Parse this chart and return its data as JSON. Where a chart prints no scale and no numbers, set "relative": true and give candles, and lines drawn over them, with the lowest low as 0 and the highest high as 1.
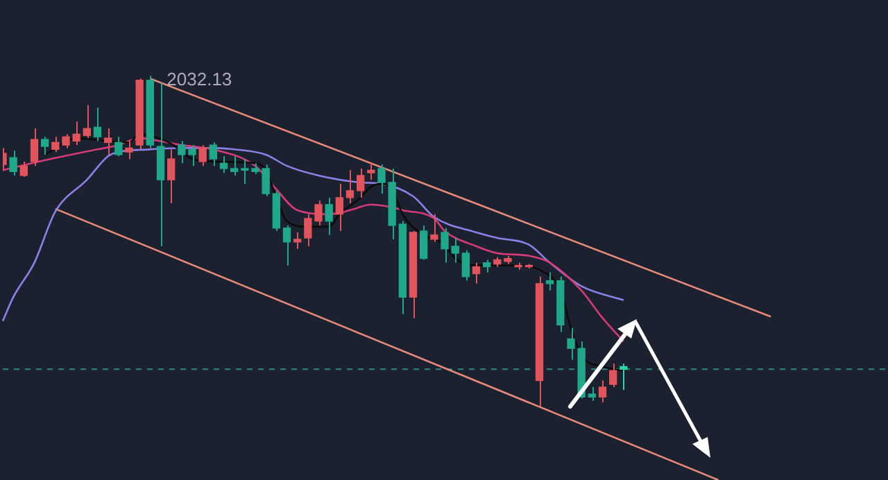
{
  "chart_data": {
    "type": "candlestick",
    "relative": true,
    "categories": [
      null,
      null,
      null,
      null,
      null,
      null,
      null,
      null,
      null,
      null,
      null,
      null,
      null,
      null,
      null,
      null,
      null,
      null,
      null,
      null,
      null,
      null,
      null,
      null,
      null,
      null,
      null,
      null,
      null,
      null,
      null,
      null,
      null,
      null,
      null,
      null,
      null,
      null,
      null,
      null,
      null,
      null,
      null,
      null,
      null,
      null,
      null,
      null,
      null,
      null,
      null,
      null,
      null,
      null,
      null,
      null,
      null,
      null,
      null,
      null,
      null,
      null,
      null,
      null,
      null,
      null,
      null,
      null,
      null,
      null,
      null,
      null,
      null,
      null,
      null,
      null,
      null,
      null,
      null,
      null,
      null,
      null,
      null,
      null,
      null
    ],
    "ohlc": [
      [
        0.732,
        0.782,
        0.715,
        0.766
      ],
      [
        0.753,
        0.774,
        0.699,
        0.711
      ],
      [
        0.699,
        0.741,
        0.695,
        0.728
      ],
      [
        0.741,
        0.841,
        0.728,
        0.808
      ],
      [
        0.808,
        0.816,
        0.762,
        0.787
      ],
      [
        0.778,
        0.816,
        0.77,
        0.799
      ],
      [
        0.791,
        0.824,
        0.782,
        0.816
      ],
      [
        0.803,
        0.862,
        0.791,
        0.824
      ],
      [
        0.82,
        0.912,
        0.812,
        0.841
      ],
      [
        0.845,
        0.904,
        0.803,
        0.816
      ],
      [
        0.799,
        0.841,
        0.762,
        0.812
      ],
      [
        0.799,
        0.816,
        0.757,
        0.762
      ],
      [
        0.77,
        0.803,
        0.749,
        0.782
      ],
      [
        0.791,
        0.992,
        0.778,
        0.987
      ],
      [
        0.987,
        1,
        0.782,
        0.791
      ],
      [
        0.787,
        0.979,
        0.485,
        0.686
      ],
      [
        0.686,
        0.778,
        0.615,
        0.749
      ],
      [
        0.791,
        0.803,
        0.736,
        0.762
      ],
      [
        0.778,
        0.791,
        0.728,
        0.762
      ],
      [
        0.741,
        0.791,
        0.728,
        0.782
      ],
      [
        0.791,
        0.799,
        0.728,
        0.749
      ],
      [
        0.736,
        0.757,
        0.707,
        0.72
      ],
      [
        0.72,
        0.757,
        0.699,
        0.711
      ],
      [
        0.72,
        0.749,
        0.674,
        0.715
      ],
      [
        0.72,
        0.736,
        0.703,
        0.711
      ],
      [
        0.72,
        0.732,
        0.636,
        0.644
      ],
      [
        0.644,
        0.653,
        0.531,
        0.54
      ],
      [
        0.54,
        0.548,
        0.427,
        0.498
      ],
      [
        0.498,
        0.527,
        0.477,
        0.506
      ],
      [
        0.51,
        0.582,
        0.485,
        0.569
      ],
      [
        0.561,
        0.623,
        0.548,
        0.611
      ],
      [
        0.611,
        0.632,
        0.519,
        0.561
      ],
      [
        0.582,
        0.674,
        0.531,
        0.632
      ],
      [
        0.632,
        0.715,
        0.615,
        0.653
      ],
      [
        0.653,
        0.72,
        0.632,
        0.699
      ],
      [
        0.707,
        0.736,
        0.686,
        0.715
      ],
      [
        0.72,
        0.732,
        0.644,
        0.678
      ],
      [
        0.678,
        0.72,
        0.506,
        0.548
      ],
      [
        0.552,
        0.561,
        0.28,
        0.331
      ],
      [
        0.331,
        0.531,
        0.268,
        0.527
      ],
      [
        0.531,
        0.548,
        0.444,
        0.448
      ],
      [
        0.506,
        0.582,
        0.498,
        0.519
      ],
      [
        0.527,
        0.54,
        0.435,
        0.477
      ],
      [
        0.485,
        0.51,
        0.435,
        0.464
      ],
      [
        0.464,
        0.473,
        0.381,
        0.393
      ],
      [
        0.402,
        0.435,
        0.372,
        0.423
      ],
      [
        0.435,
        0.444,
        0.406,
        0.423
      ],
      [
        0.431,
        0.452,
        0.423,
        0.444
      ],
      [
        0.439,
        0.456,
        0.431,
        0.448
      ],
      [
        0.423,
        0.435,
        0.414,
        0.427
      ],
      [
        0.423,
        0.431,
        0.418,
        0.427
      ],
      [
        0.079,
        0.393,
        0,
        0.372
      ],
      [
        0.381,
        0.406,
        0.351,
        0.372
      ],
      [
        0.381,
        0.393,
        0.226,
        0.247
      ],
      [
        0.205,
        0.238,
        0.142,
        0.176
      ],
      [
        0.176,
        0.197,
        0.025,
        0.029
      ],
      [
        0.038,
        0.059,
        0.017,
        0.029
      ],
      [
        0.029,
        0.079,
        0.013,
        0.059
      ],
      [
        0.067,
        0.13,
        0.059,
        0.109
      ],
      [
        0.121,
        0.13,
        0.05,
        0.113
      ],
      null,
      null,
      null,
      null,
      null,
      null,
      null,
      null,
      null,
      null,
      null,
      null,
      null,
      null,
      null,
      null,
      null,
      null,
      null,
      null,
      null,
      null,
      null,
      null,
      null
    ],
    "colors": [
      "#e2545c",
      "#1fa98a",
      "#e2545c",
      "#e2545c",
      "#1fa98a",
      "#e2545c",
      "#e2545c",
      "#e2545c",
      "#e2545c",
      "#1fa98a",
      "#e2545c",
      "#1fa98a",
      "#e2545c",
      "#e2545c",
      "#1fa98a",
      "#1fa98a",
      "#e2545c",
      "#1fa98a",
      "#1fa98a",
      "#e2545c",
      "#1fa98a",
      "#1fa98a",
      "#1fa98a",
      "#1fa98a",
      "#1fa98a",
      "#1fa98a",
      "#1fa98a",
      "#1fa98a",
      "#e2545c",
      "#e2545c",
      "#e2545c",
      "#1fa98a",
      "#e2545c",
      "#e2545c",
      "#e2545c",
      "#e2545c",
      "#1fa98a",
      "#1fa98a",
      "#1fa98a",
      "#e2545c",
      "#1fa98a",
      "#e2545c",
      "#1fa98a",
      "#1fa98a",
      "#1fa98a",
      "#e2545c",
      "#1fa98a",
      "#e2545c",
      "#e2545c",
      "#e2545c",
      "#e2545c",
      "#e2545c",
      "#1fa98a",
      "#1fa98a",
      "#1fa98a",
      "#1fa98a",
      "#1fa98a",
      "#e2545c",
      "#e2545c",
      "#2ad6a8",
      null,
      null,
      null,
      null,
      null,
      null,
      null,
      null,
      null,
      null,
      null,
      null,
      null,
      null,
      null,
      null,
      null,
      null,
      null,
      null,
      null,
      null,
      null,
      null,
      null
    ],
    "series": [
      {
        "type": "line",
        "color": "#0b0b0b",
        "values": [
          null,
          null,
          null,
          null,
          0.762,
          null,
          null,
          0.812,
          null,
          null,
          0.803,
          null,
          0.799,
          0.824,
          0.82,
          null,
          0.795,
          null,
          0.749,
          null,
          0.741,
          null,
          null,
          null,
          0.736,
          0.715,
          0.632,
          0.561,
          null,
          0.544,
          null,
          0.544,
          0.582,
          null,
          0.632,
          0.665,
          0.674,
          0.657,
          0.582,
          null,
          0.519,
          null,
          0.49,
          0.448,
          null,
          0.427,
          null,
          0.427,
          null,
          0.427,
          null,
          0.414,
          null,
          0.351,
          0.238,
          0.155,
          null,
          0.121,
          null,
          0.109,
          null,
          null,
          null,
          null,
          null,
          null,
          null,
          null,
          null,
          null,
          null,
          null,
          null,
          null,
          null,
          null,
          null,
          null,
          null,
          null,
          null,
          null,
          null,
          null,
          null
        ]
      },
      {
        "type": "line",
        "color": "#d63a78",
        "values": [
          0.715,
          null,
          null,
          null,
          0.745,
          null,
          null,
          null,
          null,
          0.778,
          null,
          0.791,
          null,
          0.812,
          null,
          0.803,
          null,
          0.791,
          null,
          null,
          0.778,
          null,
          null,
          null,
          0.728,
          null,
          0.657,
          null,
          0.594,
          null,
          null,
          0.582,
          null,
          0.594,
          null,
          0.611,
          null,
          0.603,
          0.594,
          null,
          null,
          0.569,
          0.531,
          null,
          null,
          0.485,
          null,
          0.464,
          null,
          null,
          0.456,
          null,
          0.435,
          null,
          null,
          0.351,
          null,
          0.268,
          null,
          0.197,
          null,
          null,
          null,
          null,
          null,
          null,
          null,
          null,
          null,
          null,
          null,
          null,
          null,
          null,
          null,
          null,
          null,
          null,
          null,
          null,
          null,
          null,
          null,
          null,
          null
        ]
      },
      {
        "type": "line",
        "color": "#8d80e8",
        "values": [
          0.259,
          0.331,
          null,
          0.435,
          null,
          0.59,
          null,
          null,
          0.686,
          null,
          0.757,
          0.77,
          null,
          null,
          0.778,
          null,
          null,
          0.782,
          null,
          null,
          0.782,
          null,
          0.778,
          null,
          null,
          0.762,
          null,
          0.728,
          null,
          null,
          0.699,
          null,
          null,
          null,
          0.678,
          null,
          0.674,
          null,
          null,
          0.636,
          null,
          0.573,
          null,
          null,
          null,
          0.527,
          null,
          0.51,
          null,
          null,
          0.49,
          null,
          0.435,
          null,
          null,
          0.364,
          null,
          null,
          null,
          0.322,
          null,
          null,
          null,
          null,
          null,
          null,
          null,
          null,
          null,
          null,
          null,
          null,
          null,
          null,
          null,
          null,
          null,
          null,
          null,
          null,
          null,
          null,
          null,
          null,
          null
        ]
      },
      {
        "type": "line",
        "color": "#e88a7a",
        "values": [
          null,
          null,
          null,
          null,
          null,
          null,
          null,
          null,
          null,
          null,
          null,
          null,
          null,
          null,
          0.992,
          null,
          null,
          null,
          null,
          null,
          null,
          null,
          null,
          null,
          null,
          null,
          null,
          null,
          null,
          null,
          null,
          null,
          null,
          null,
          null,
          null,
          null,
          null,
          null,
          null,
          null,
          null,
          null,
          null,
          null,
          null,
          null,
          null,
          null,
          null,
          null,
          null,
          null,
          null,
          null,
          null,
          null,
          null,
          null,
          null,
          null,
          null,
          null,
          null,
          null,
          null,
          null,
          null,
          null,
          null,
          null,
          null,
          null,
          0.272,
          null,
          null,
          null,
          null,
          null,
          null,
          null,
          null,
          null,
          null,
          null
        ]
      },
      {
        "type": "line",
        "color": "#e88a7a",
        "values": [
          null,
          null,
          null,
          null,
          null,
          0.598,
          null,
          null,
          null,
          null,
          null,
          null,
          null,
          null,
          null,
          null,
          null,
          null,
          null,
          null,
          null,
          null,
          null,
          null,
          null,
          null,
          null,
          null,
          null,
          null,
          null,
          null,
          null,
          null,
          null,
          null,
          null,
          null,
          null,
          null,
          null,
          null,
          null,
          null,
          null,
          null,
          null,
          null,
          null,
          null,
          null,
          null,
          null,
          null,
          null,
          null,
          null,
          null,
          null,
          null,
          null,
          null,
          null,
          null,
          null,
          null,
          null,
          null,
          -0.222,
          null,
          null,
          null,
          null,
          null,
          null,
          null,
          null,
          null,
          null,
          null,
          null,
          null,
          null,
          null,
          null
        ]
      }
    ],
    "ref_lines": [
      {
        "axis": "y",
        "value": 0.113,
        "color": "#2e8b7c",
        "line_style": "dashed"
      }
    ],
    "annotations": [
      "2032.13"
    ]
  }
}
